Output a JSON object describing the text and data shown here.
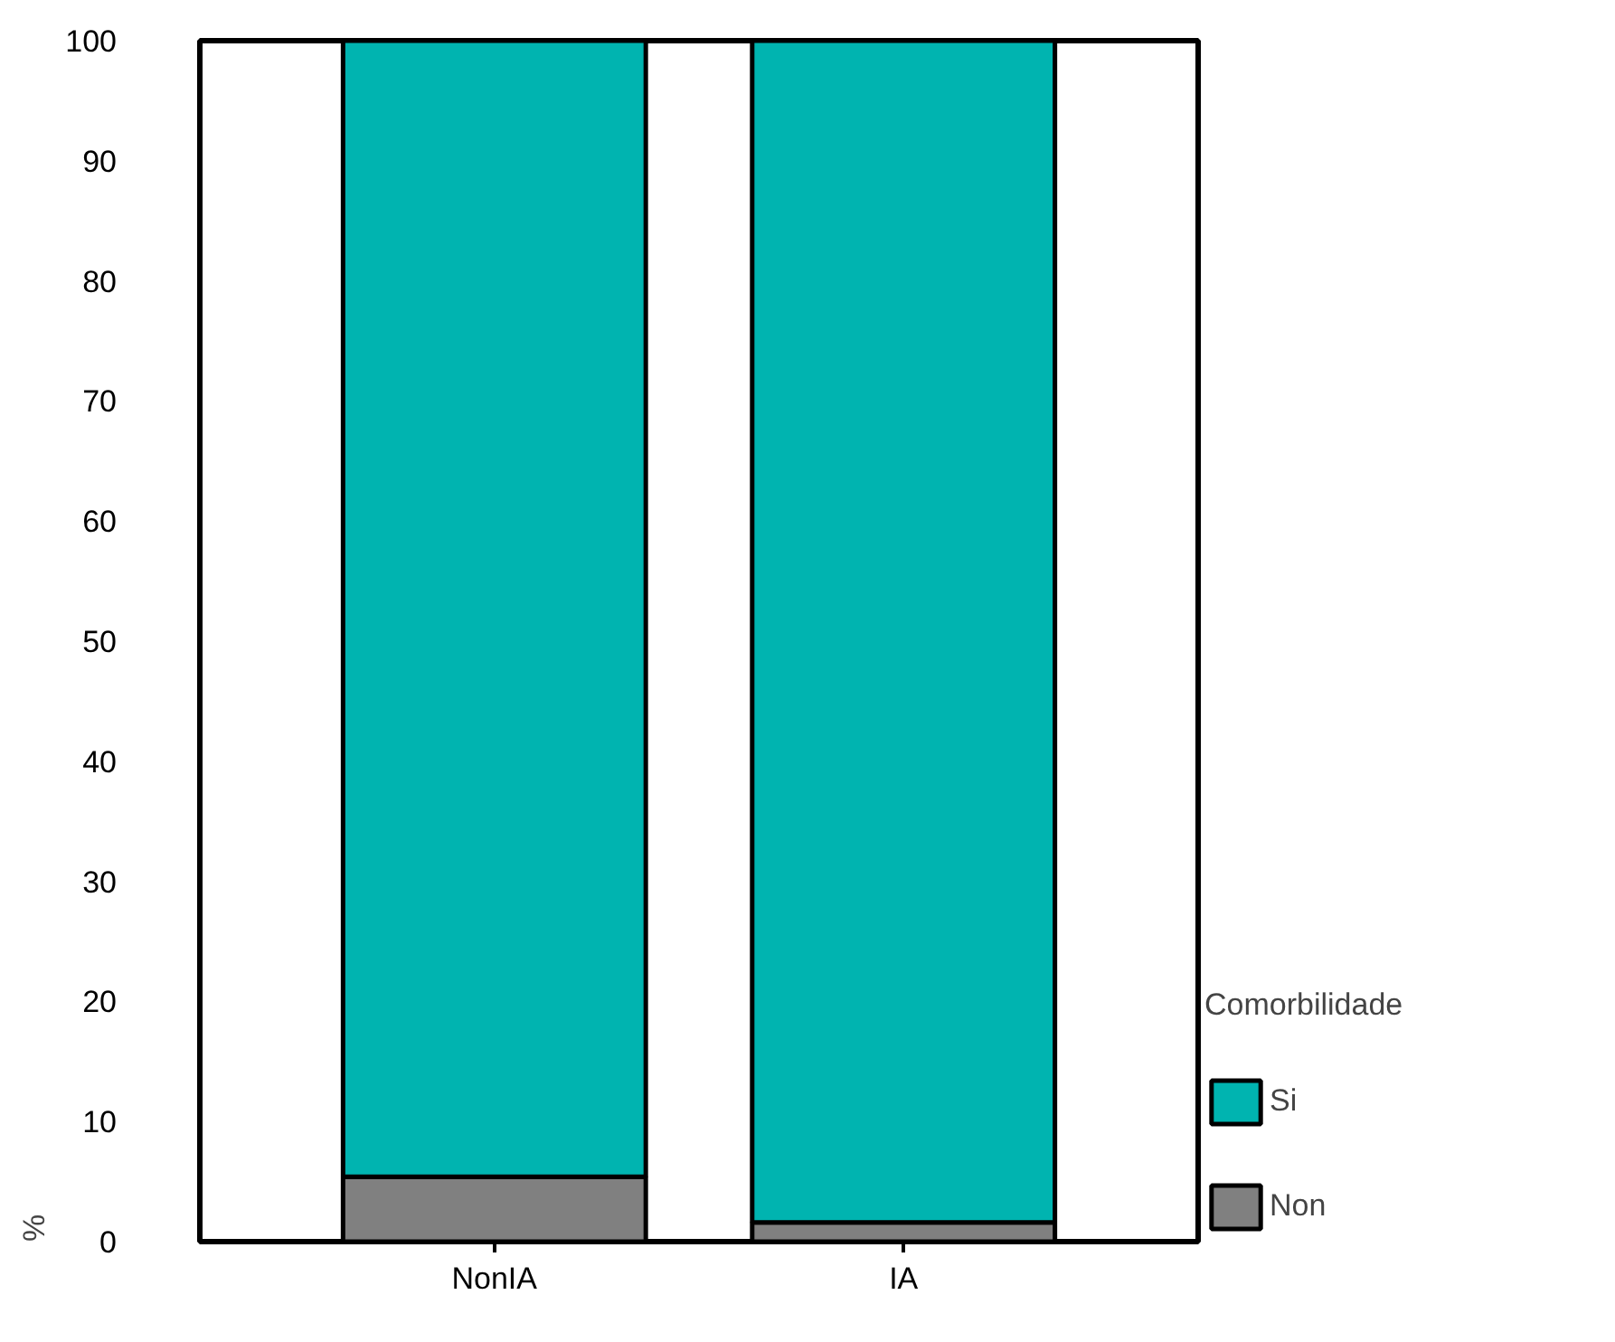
{
  "chart_data": {
    "type": "bar",
    "stacked": true,
    "categories": [
      "NonIA",
      "IA"
    ],
    "ylabel": "%",
    "legend_title": "Comorbilidade",
    "legend": "right",
    "series": [
      {
        "name": "Non",
        "color": "#808080",
        "values": [
          5.4,
          1.6
        ]
      },
      {
        "name": "Si",
        "color": "#00b4b0",
        "values": [
          94.6,
          98.4
        ]
      }
    ],
    "ylim": [
      0,
      100
    ],
    "yticks": [
      0,
      10,
      20,
      30,
      40,
      50,
      60,
      70,
      80,
      90,
      100
    ],
    "grid": false
  }
}
